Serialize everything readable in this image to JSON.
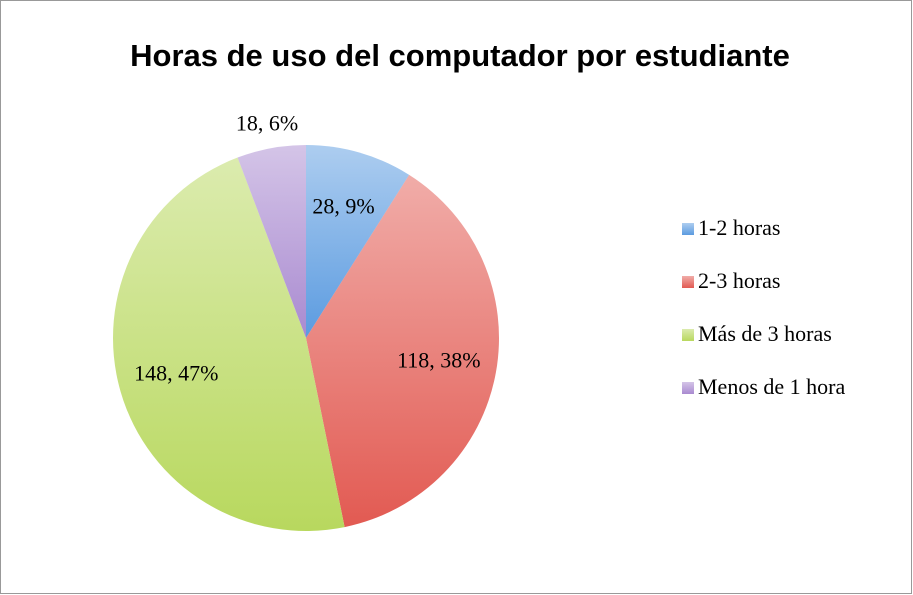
{
  "chart_data": {
    "type": "pie",
    "title": "Horas de uso del computador por estudiante",
    "categories": [
      "1-2 horas",
      "2-3 horas",
      "Más de 3 horas",
      "Menos de 1 hora"
    ],
    "values": [
      28,
      118,
      148,
      18
    ],
    "value_labels": [
      "28, 9%",
      "118, 38%",
      "148, 47%",
      "18, 6%"
    ],
    "colors": [
      "#5b9be0",
      "#e25a52",
      "#b8d85e",
      "#a98ad0"
    ],
    "legend": "right"
  }
}
